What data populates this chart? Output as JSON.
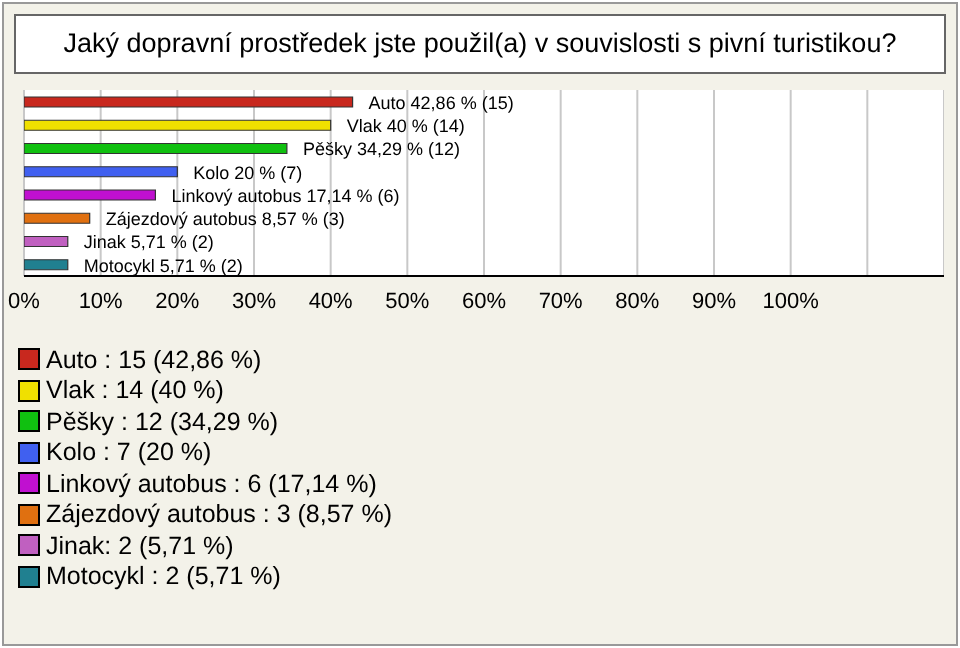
{
  "chart_data": {
    "type": "bar",
    "orientation": "horizontal",
    "title": "Jaký dopravní prostředek jste použil(a) v souvislosti s pivní turistikou?",
    "categories": [
      "Auto",
      "Vlak",
      "Pěšky",
      "Kolo",
      "Linkový autobus",
      "Zájezdový autobus",
      "Jinak",
      "Motocykl"
    ],
    "values": [
      42.86,
      40,
      34.29,
      20,
      17.14,
      8.57,
      5.71,
      5.71
    ],
    "value_labels": [
      "42,86 % (15)",
      "40 % (14)",
      "34,29 % (12)",
      "20 % (7)",
      "17,14 % (6)",
      "8,57 % (3)",
      "5,71 % (2)",
      "5,71 % (2)"
    ],
    "colors": [
      "#c8281e",
      "#f0e000",
      "#10c010",
      "#4060f0",
      "#c010d0",
      "#e07010",
      "#c060c0",
      "#208090"
    ],
    "xlim": [
      0,
      120
    ],
    "xticks": [
      {
        "value": 0,
        "label": "0%"
      },
      {
        "value": 10,
        "label": "10%"
      },
      {
        "value": 20,
        "label": "20%"
      },
      {
        "value": 30,
        "label": "30%"
      },
      {
        "value": 40,
        "label": "40%"
      },
      {
        "value": 50,
        "label": "50%"
      },
      {
        "value": 60,
        "label": "60%"
      },
      {
        "value": 70,
        "label": "70%"
      },
      {
        "value": 80,
        "label": "80%"
      },
      {
        "value": 90,
        "label": "90%"
      },
      {
        "value": 100,
        "label": "100%"
      },
      {
        "value": 110,
        "label": null
      }
    ],
    "grid": "x",
    "annotations": [
      "Auto : 15 (42,86 %)",
      "Vlak : 14 (40 %)",
      "Pěšky : 12 (34,29 %)",
      "Kolo : 7 (20 %)",
      "Linkový autobus : 6 (17,14 %)",
      "Zájezdový autobus : 3 (8,57 %)",
      "Jinak: 2 (5,71 %)",
      "Motocykl : 2 (5,71 %)"
    ]
  }
}
